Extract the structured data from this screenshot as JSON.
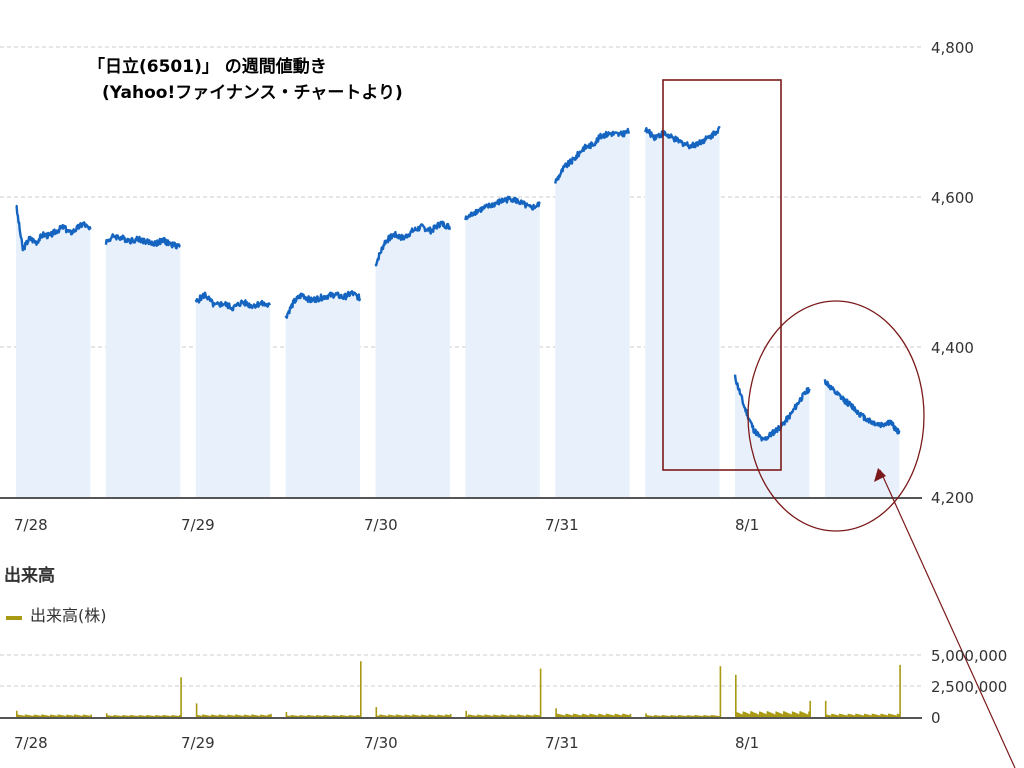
{
  "title": "「日立(6501)」 の週間値動き",
  "subtitle": "(Yahoo!ファイナンス・チャートより)",
  "volume_heading": "出来高",
  "volume_legend": "出来高(株)",
  "colors": {
    "price_line": "#1565c0",
    "price_fill": "#e8f1fb",
    "volume": "#a89a12",
    "grid": "#cccccc",
    "annotation": "#7a1a1a",
    "axis_text": "#333333"
  },
  "chart_data": [
    {
      "type": "line",
      "title": "「日立(6501)」 の週間値動き",
      "categories": [
        "7/28",
        "7/29",
        "7/30",
        "7/31",
        "8/1"
      ],
      "ylim": [
        4200,
        4800
      ],
      "yticks": [
        "4,200",
        "4,400",
        "4,600",
        "4,800"
      ],
      "ytick_values": [
        4200,
        4400,
        4600,
        4800
      ],
      "grid": true,
      "series": [
        {
          "sessions": [
            {
              "x_range": [
                0.0,
                0.85
              ],
              "values": [
                4590,
                4530,
                4545,
                4540,
                4550,
                4548,
                4555,
                4560,
                4552,
                4558,
                4565,
                4555
              ]
            },
            {
              "x_range": [
                1.0,
                1.85
              ],
              "values": [
                4540,
                4548,
                4545,
                4542,
                4544,
                4540,
                4538,
                4542,
                4536,
                4535
              ]
            },
            {
              "x_range": [
                2.0,
                2.85
              ],
              "values": [
                4460,
                4470,
                4455,
                4458,
                4452,
                4460,
                4455,
                4458,
                4455
              ]
            },
            {
              "x_range": [
                3.0,
                3.85
              ],
              "values": [
                4440,
                4460,
                4470,
                4462,
                4465,
                4468,
                4470,
                4466,
                4472,
                4465
              ]
            },
            {
              "x_range": [
                4.0,
                4.85
              ],
              "values": [
                4510,
                4540,
                4550,
                4545,
                4555,
                4560,
                4555,
                4565,
                4560
              ]
            },
            {
              "x_range": [
                5.0,
                5.85
              ],
              "values": [
                4570,
                4580,
                4585,
                4590,
                4595,
                4598,
                4592,
                4585,
                4590
              ]
            },
            {
              "x_range": [
                6.0,
                6.85
              ],
              "values": [
                4620,
                4640,
                4650,
                4665,
                4670,
                4682,
                4685,
                4683,
                4688
              ]
            },
            {
              "x_range": [
                7.0,
                7.85
              ],
              "values": [
                4690,
                4680,
                4685,
                4678,
                4672,
                4668,
                4674,
                4680,
                4692
              ]
            },
            {
              "x_range": [
                8.0,
                8.85
              ],
              "values": [
                4360,
                4320,
                4290,
                4275,
                4285,
                4295,
                4310,
                4330,
                4345
              ]
            },
            {
              "x_range": [
                9.0,
                9.85
              ],
              "values": [
                4355,
                4340,
                4330,
                4320,
                4308,
                4300,
                4296,
                4300,
                4285
              ]
            }
          ]
        }
      ]
    },
    {
      "type": "bar",
      "title": "出来高",
      "categories": [
        "7/28",
        "7/29",
        "7/30",
        "7/31",
        "8/1"
      ],
      "ylim": [
        0,
        5000000
      ],
      "yticks": [
        "0",
        "2,500,000",
        "5,000,000"
      ],
      "ytick_values": [
        0,
        2500000,
        5000000
      ],
      "series": [
        {
          "name": "出来高(株)",
          "sessions": [
            {
              "open": 500000,
              "base": 150000,
              "close": 200000
            },
            {
              "open": 300000,
              "base": 120000,
              "close": 3200000
            },
            {
              "open": 1100000,
              "base": 150000,
              "close": 250000
            },
            {
              "open": 400000,
              "base": 120000,
              "close": 4500000
            },
            {
              "open": 800000,
              "base": 150000,
              "close": 250000
            },
            {
              "open": 500000,
              "base": 150000,
              "close": 3900000
            },
            {
              "open": 700000,
              "base": 200000,
              "close": 250000
            },
            {
              "open": 300000,
              "base": 120000,
              "close": 4100000
            },
            {
              "open": 3400000,
              "base": 350000,
              "close": 1300000
            },
            {
              "open": 1300000,
              "base": 200000,
              "close": 4200000
            }
          ]
        }
      ]
    }
  ]
}
